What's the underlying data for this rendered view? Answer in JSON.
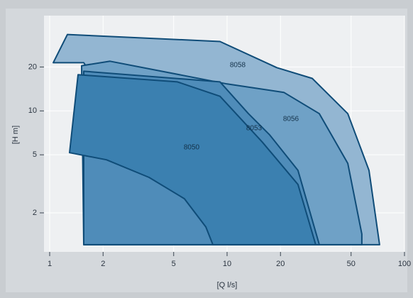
{
  "chart_data": {
    "type": "area-polygon",
    "x_label": "[Q l/s]",
    "y_label": "[H m]",
    "log_x": true,
    "log_y": true,
    "grid": true,
    "xlim": [
      1,
      100
    ],
    "ylim": [
      1.08,
      45
    ],
    "xticks": [
      1,
      2,
      5,
      10,
      20,
      50,
      100
    ],
    "yticks": [
      2,
      5,
      10,
      20
    ],
    "series": [
      {
        "name": "8058",
        "color": "#93b6d2",
        "x": [
          1.047,
          1.259,
          9.12,
          19.05,
          30.2,
          47.9,
          63.1,
          72.4,
          8.32,
          1.556
        ],
        "y": [
          21.4,
          33.4,
          29.9,
          19.8,
          16.7,
          9.57,
          3.91,
          1.21,
          1.21,
          21.4
        ]
      },
      {
        "name": "8056",
        "color": "#6fa1c6",
        "x": [
          1.513,
          2.19,
          10,
          20.9,
          33.1,
          47.9,
          57.5,
          57.5,
          1.556
        ],
        "y": [
          20.4,
          21.9,
          15.3,
          13.4,
          9.57,
          4.37,
          1.43,
          1.21,
          1.21
        ]
      },
      {
        "name": "8053",
        "color": "#4f8cb9",
        "x": [
          1.556,
          9.12,
          13.2,
          17.4,
          25.1,
          33.1,
          1.556
        ],
        "y": [
          18.7,
          15.8,
          9.57,
          6.84,
          3.91,
          1.21,
          1.21
        ]
      },
      {
        "name": "8050",
        "color": "#3b80b0",
        "x": [
          1.445,
          5.25,
          9.12,
          15.8,
          25.1,
          31.6,
          8.32,
          7.59,
          5.75,
          3.63,
          2.09,
          1.294
        ],
        "y": [
          17.7,
          15.8,
          12.6,
          6.11,
          3.13,
          1.21,
          1.21,
          1.6,
          2.5,
          3.5,
          4.62,
          5.17
        ]
      }
    ]
  }
}
